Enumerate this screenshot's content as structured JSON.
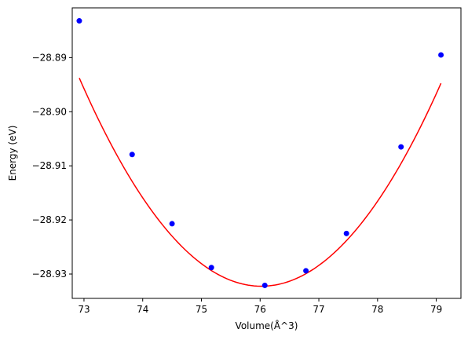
{
  "chart_data": {
    "type": "scatter",
    "title": "",
    "xlabel": "Volume(Å^3)",
    "ylabel": "Energy (eV)",
    "xlim": [
      72.8,
      79.42
    ],
    "ylim": [
      -28.9345,
      -28.8808
    ],
    "xticks": [
      73,
      74,
      75,
      76,
      77,
      78,
      79
    ],
    "xtick_labels": [
      "73",
      "74",
      "75",
      "76",
      "77",
      "78",
      "79"
    ],
    "yticks": [
      -28.93,
      -28.92,
      -28.91,
      -28.9,
      -28.89
    ],
    "ytick_labels": [
      "−28.93",
      "−28.92",
      "−28.91",
      "−28.90",
      "−28.89"
    ],
    "grid": false,
    "series": [
      {
        "type": "scatter",
        "color": "#0000ff",
        "marker": "circle",
        "x": [
          72.92,
          73.82,
          74.5,
          75.17,
          76.08,
          76.78,
          77.47,
          78.4,
          79.08
        ],
        "y": [
          -28.8832,
          -28.9079,
          -28.9207,
          -28.9288,
          -28.9321,
          -28.9294,
          -28.9225,
          -28.9065,
          -28.8895
        ]
      },
      {
        "type": "line",
        "color": "#ff0000",
        "fit": {
          "kind": "quadratic",
          "x0": 76.02,
          "y0": -28.93225,
          "a": 0.004005
        },
        "x_range": [
          72.92,
          79.08
        ]
      }
    ]
  }
}
